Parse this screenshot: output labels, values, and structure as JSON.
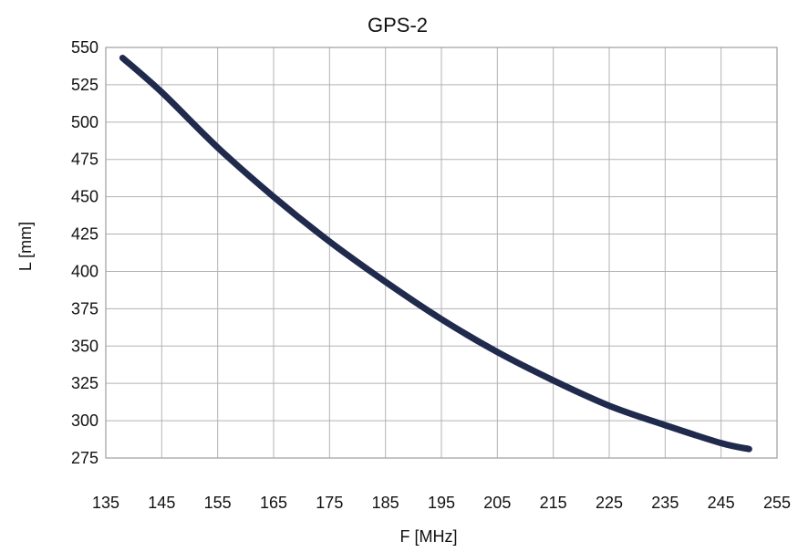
{
  "chart_data": {
    "type": "line",
    "title": "GPS-2",
    "xlabel": "F [MHz]",
    "ylabel": "L [mm]",
    "xlim": [
      135,
      255
    ],
    "ylim": [
      275,
      550
    ],
    "xticks": [
      135,
      145,
      155,
      165,
      175,
      185,
      195,
      205,
      215,
      225,
      235,
      245,
      255
    ],
    "yticks": [
      550,
      525,
      500,
      475,
      450,
      425,
      400,
      375,
      350,
      325,
      300,
      275
    ],
    "grid": true,
    "legend": "none",
    "series": [
      {
        "color": "#1f2a4d",
        "x": [
          138,
          145,
          155,
          165,
          175,
          185,
          195,
          205,
          215,
          225,
          235,
          245,
          250
        ],
        "y": [
          543,
          520,
          483,
          450,
          420,
          393,
          368,
          346,
          327,
          310,
          297,
          285,
          281
        ]
      }
    ]
  }
}
